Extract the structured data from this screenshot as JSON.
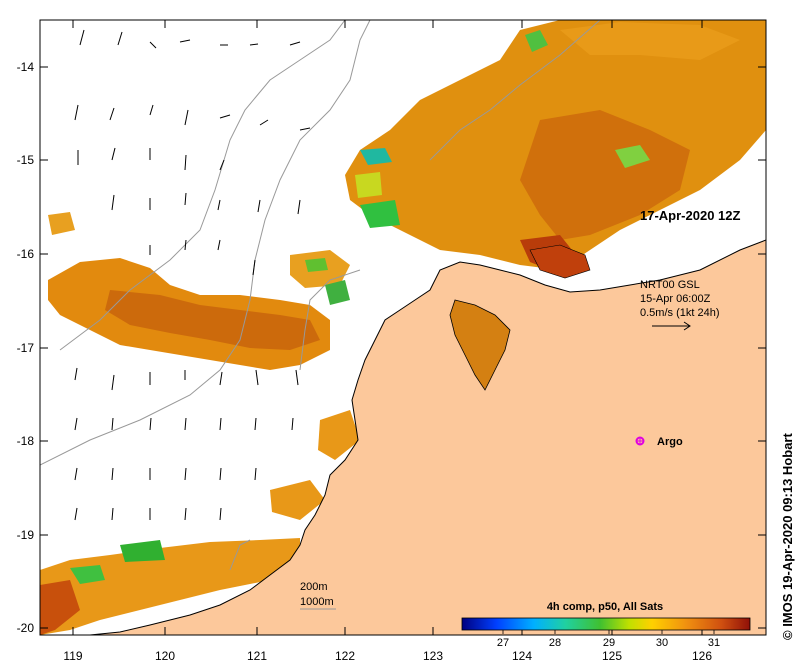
{
  "map": {
    "lon_ticks": [
      "119",
      "120",
      "121",
      "122",
      "123",
      "124",
      "125",
      "126"
    ],
    "lat_ticks": [
      "-14",
      "-15",
      "-16",
      "-17",
      "-18",
      "-19",
      "-20"
    ],
    "timestamp_label": "17-Apr-2020 12Z",
    "wind_key": {
      "line1": "NRT00 GSL",
      "line2": "15-Apr 06:00Z",
      "line3": "0.5m/s (1kt 24h)"
    },
    "argo_label": "Argo",
    "isobath_legend": [
      "200m",
      "1000m"
    ],
    "credit": "© IMOS 19-Apr-2020 09:13 Hobart",
    "colorbar": {
      "title": "4h comp, p50, All Sats",
      "ticks": [
        "27",
        "28",
        "29",
        "30",
        "31"
      ]
    },
    "colors": {
      "land": "#fcc89b",
      "sst_warm": "#e08a0c",
      "sst_hot": "#c8480a",
      "sst_mid": "#f0a820",
      "sst_cool": "#40c040",
      "argo": "#e000e0"
    }
  }
}
